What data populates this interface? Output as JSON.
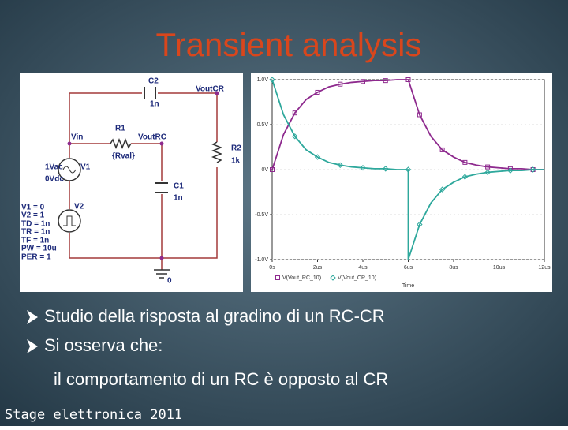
{
  "slide": {
    "title": "Transient analysis",
    "bullets": [
      "Studio della risposta al gradino di un RC-CR",
      "Si osserva che:"
    ],
    "sub_line": "il comportamento di un RC è opposto al CR",
    "footer": "Stage elettronica 2011"
  },
  "diagram": {
    "labels": [
      "C2",
      "1n",
      "VoutCR",
      "R1",
      "Vin",
      "VoutRC",
      "{Rval}",
      "R2",
      "1k",
      "1Vac",
      "0Vdc",
      "V1",
      "C1",
      "1n",
      "V2",
      "V1 = 0",
      "V2 = 1",
      "TD = 1n",
      "TR = 1n",
      "TF = 1n",
      "PW = 10u",
      "PER = 1",
      "0"
    ]
  },
  "chart_data": {
    "type": "line",
    "x_label": "Time",
    "x": [
      0,
      0.5,
      1,
      1.5,
      2,
      2.5,
      3,
      3.5,
      4,
      4.5,
      5,
      5.5,
      6,
      6,
      6.5,
      7,
      7.5,
      8,
      8.5,
      9,
      9.5,
      10,
      10.5,
      11,
      11.5,
      12
    ],
    "series": [
      {
        "name": "V(Vout_RC_10)",
        "color": "#8e2a8e",
        "marker": "square",
        "values": [
          0,
          0.39,
          0.63,
          0.78,
          0.86,
          0.92,
          0.95,
          0.97,
          0.98,
          0.99,
          0.99,
          1.0,
          1.0,
          1.0,
          0.61,
          0.37,
          0.22,
          0.14,
          0.08,
          0.05,
          0.03,
          0.02,
          0.01,
          0.01,
          0,
          0
        ]
      },
      {
        "name": "V(Vout_CR_10)",
        "color": "#2ea89c",
        "marker": "diamond",
        "values": [
          1.0,
          0.61,
          0.37,
          0.22,
          0.14,
          0.08,
          0.05,
          0.03,
          0.02,
          0.01,
          0.01,
          0,
          0,
          -1.0,
          -0.61,
          -0.37,
          -0.22,
          -0.14,
          -0.08,
          -0.05,
          -0.03,
          -0.02,
          -0.01,
          -0.01,
          0,
          0
        ]
      }
    ],
    "xlim": [
      0,
      12
    ],
    "ylim": [
      -1.0,
      1.0
    ],
    "xticks": [
      {
        "value": 0,
        "label": "0s"
      },
      {
        "value": 2,
        "label": "2us"
      },
      {
        "value": 4,
        "label": "4us"
      },
      {
        "value": 6,
        "label": "6us"
      },
      {
        "value": 8,
        "label": "8us"
      },
      {
        "value": 10,
        "label": "10us"
      },
      {
        "value": 12,
        "label": "12us"
      }
    ],
    "yticks": [
      {
        "value": 1.0,
        "label": "1.0V"
      },
      {
        "value": 0.5,
        "label": "0.5V"
      },
      {
        "value": 0,
        "label": "0V"
      },
      {
        "value": -0.5,
        "label": "-0.5V"
      },
      {
        "value": -1.0,
        "label": "-1.0V"
      }
    ]
  }
}
